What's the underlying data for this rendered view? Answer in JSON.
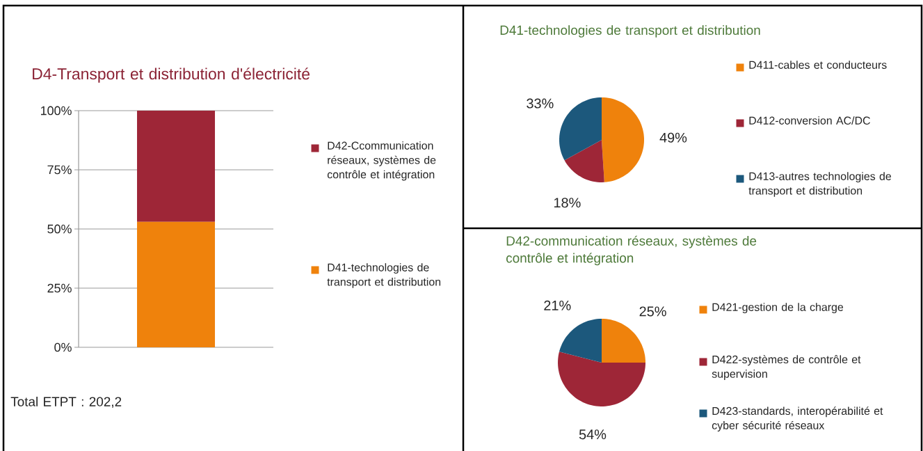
{
  "chart_data": [
    {
      "type": "bar",
      "title": "D4-Transport et distribution d'électricité",
      "categories": [
        null
      ],
      "stacked": true,
      "series": [
        {
          "name": "D41-technologies de transport et distribution",
          "color": "#ef820c",
          "values": [
            53
          ]
        },
        {
          "name": "D42-Ccommunication réseaux, systèmes de contrôle et intégration",
          "color": "#9e2637",
          "values": [
            47
          ]
        }
      ],
      "ylim": [
        0,
        100
      ],
      "yticks": [
        {
          "value": 0,
          "label": "0%"
        },
        {
          "value": 25,
          "label": "25%"
        },
        {
          "value": 50,
          "label": "50%"
        },
        {
          "value": 75,
          "label": "75%"
        },
        {
          "value": 100,
          "label": "100%"
        }
      ],
      "grid": "y",
      "legend": "right",
      "annotations": [
        "Total ETPT : 202,2"
      ]
    },
    {
      "type": "pie",
      "title": "D41-technologies de transport et distribution",
      "categories": [
        "D411-cables et conducteurs",
        "D412-conversion AC/DC",
        "D413-autres technologies de transport et distribution"
      ],
      "values": [
        49,
        18,
        33
      ],
      "value_labels": [
        "49%",
        "18%",
        "33%"
      ],
      "colors": [
        "#ef820c",
        "#9e2637",
        "#1c587c"
      ],
      "legend": "right"
    },
    {
      "type": "pie",
      "title": "D42-communication réseaux, systèmes de contrôle et intégration",
      "categories": [
        "D421-gestion de la charge",
        "D422-systèmes de contrôle et supervision",
        "D423-standards, interopérabilité et cyber sécurité réseaux"
      ],
      "values": [
        25,
        54,
        21
      ],
      "value_labels": [
        "25%",
        "54%",
        "21%"
      ],
      "colors": [
        "#ef820c",
        "#9e2637",
        "#1c587c"
      ],
      "legend": "right"
    }
  ]
}
